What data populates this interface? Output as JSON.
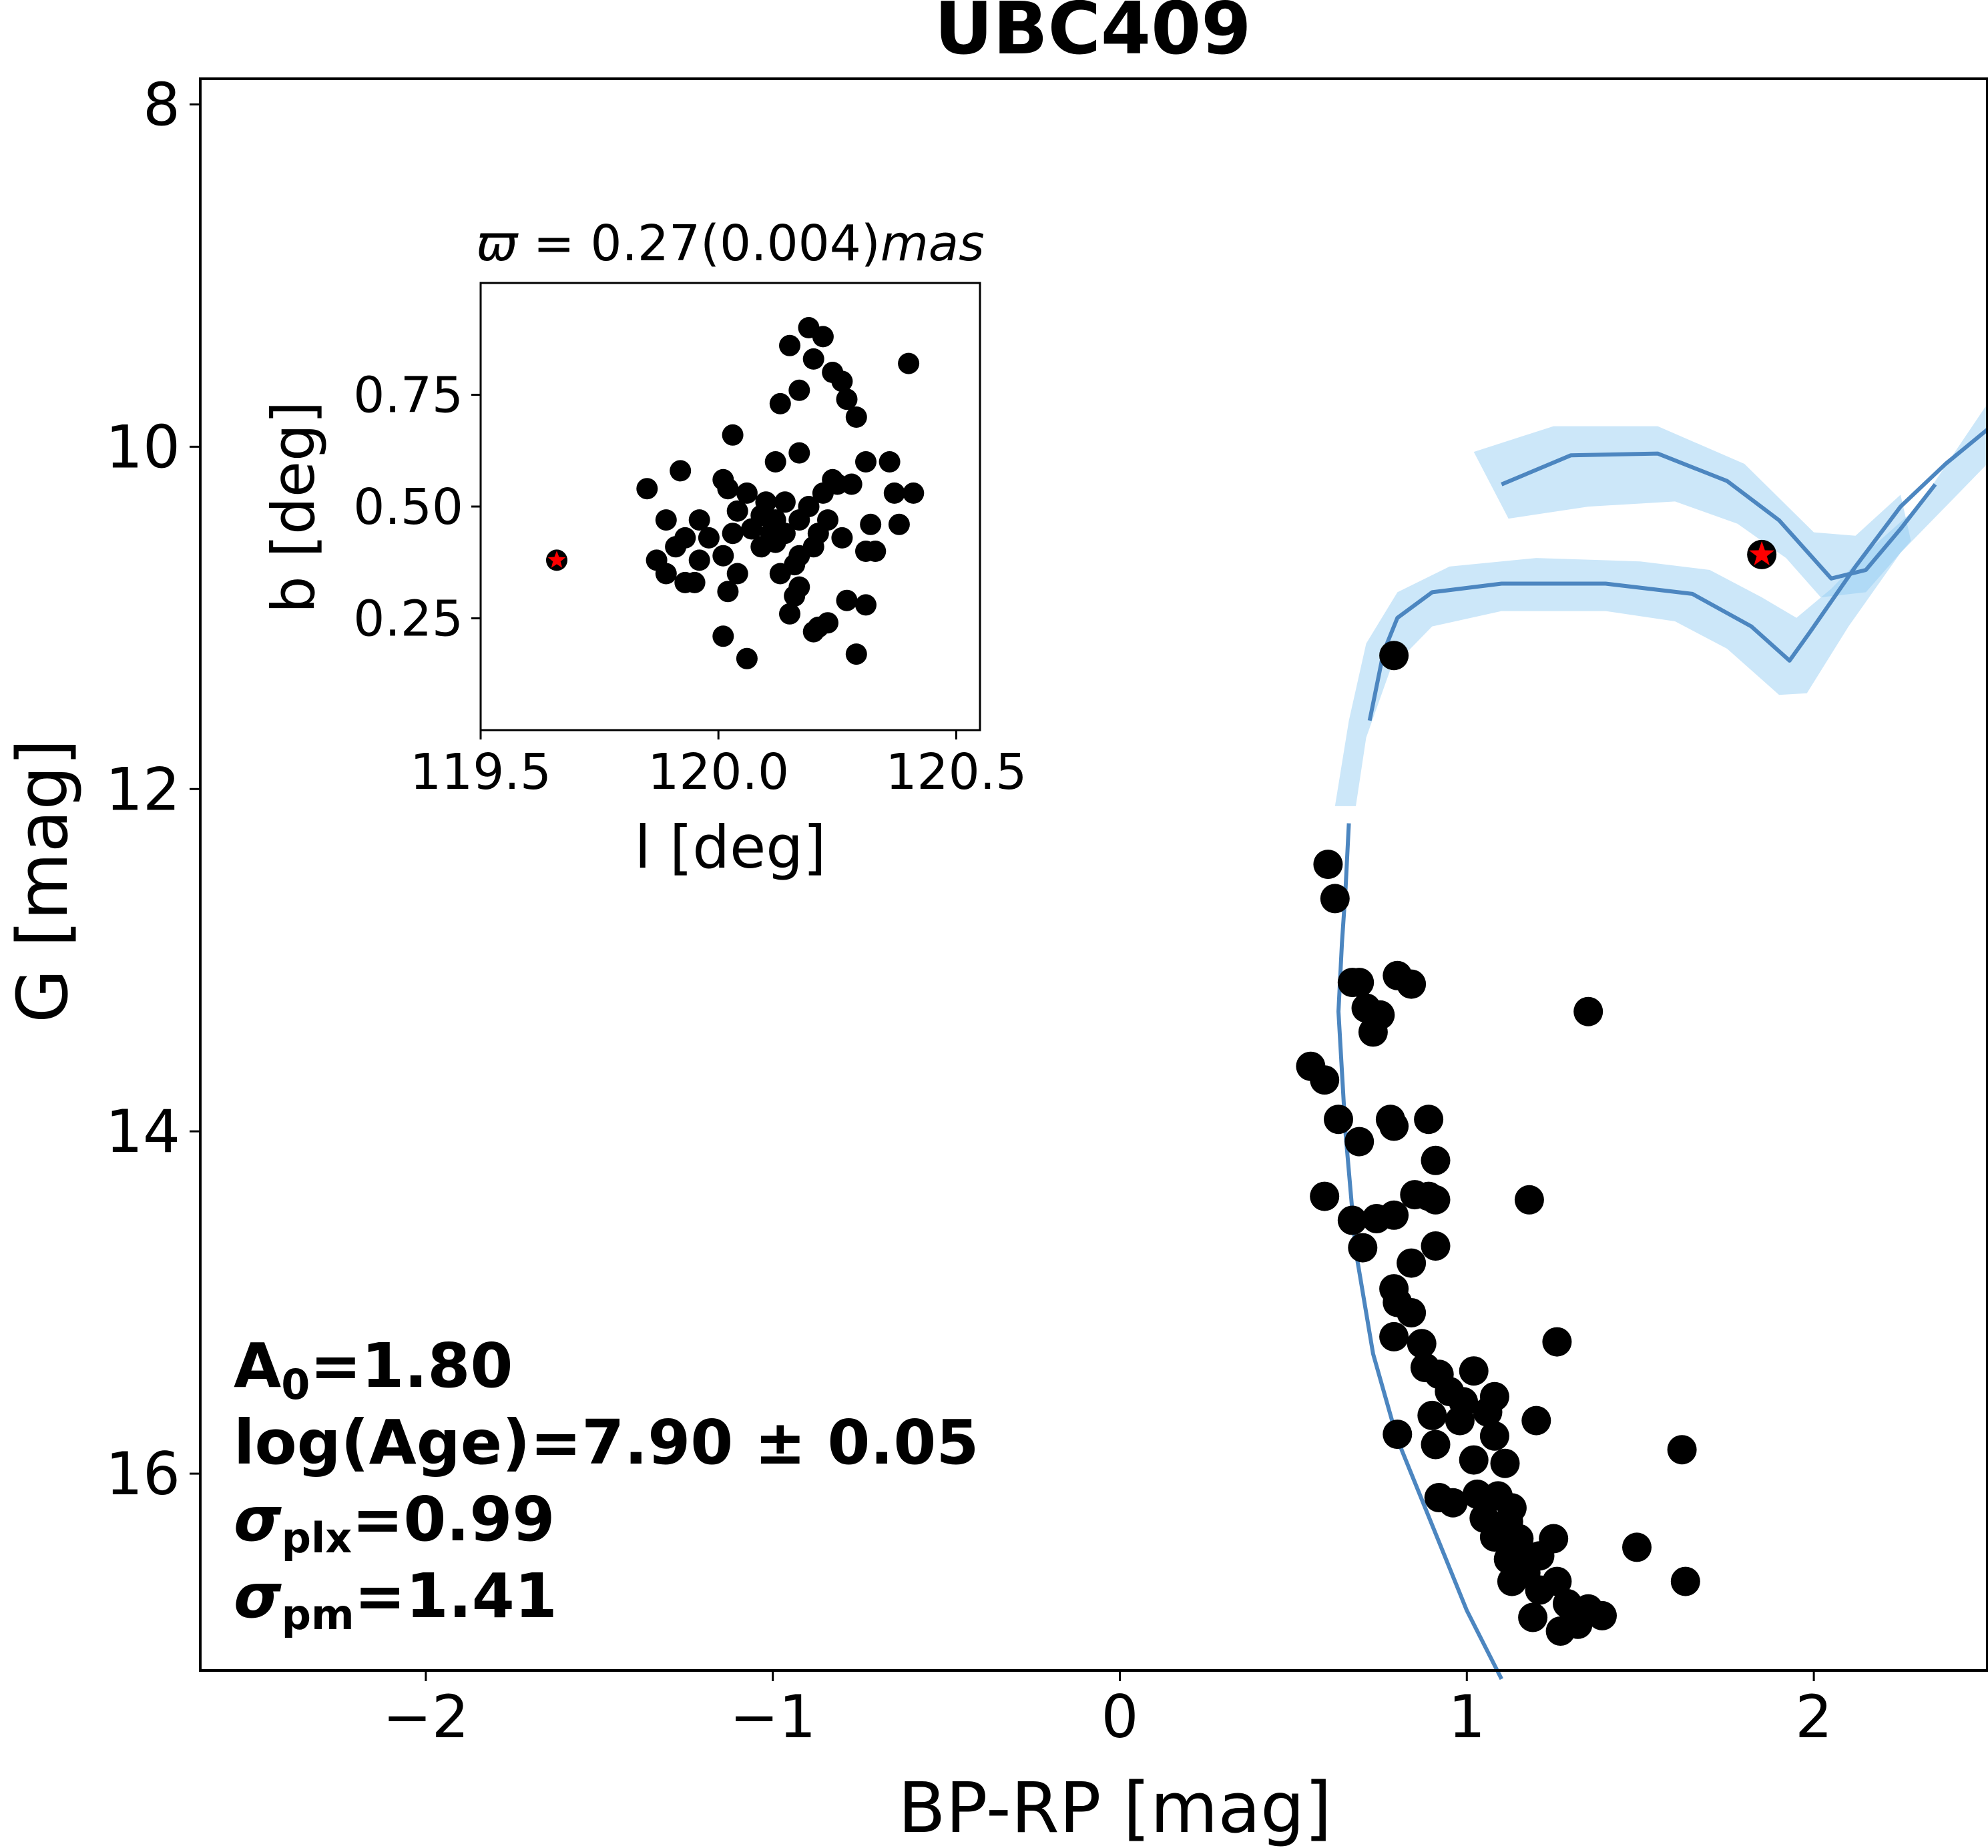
{
  "chart_data": [
    {
      "type": "scatter",
      "title": "UBC409",
      "xlabel": "BP-RP [mag]",
      "ylabel": "G [mag]",
      "xlim": [
        -2.65,
        2.5
      ],
      "ylim": [
        17.15,
        7.85
      ],
      "y_inverted": true,
      "xticks": [
        -2,
        -1,
        0,
        1,
        2
      ],
      "xtick_labels": [
        "−2",
        "−1",
        "0",
        "1",
        "2"
      ],
      "yticks": [
        8,
        10,
        12,
        14,
        16
      ],
      "ytick_labels": [
        "8",
        "10",
        "12",
        "14",
        "16"
      ],
      "annotations": {
        "a0": {
          "label": "A",
          "sub": "0",
          "value": "=1.80"
        },
        "age": {
          "text": "log(Age)=7.90 ± 0.05"
        },
        "splx": {
          "label": "σ",
          "sub": "plx",
          "value": "=0.99"
        },
        "spm": {
          "label": "σ",
          "sub": "pm",
          "value": "=1.41"
        }
      },
      "series": [
        {
          "name": "members",
          "marker": "circle",
          "color": "#000000",
          "points": [
            [
              0.79,
              11.22
            ],
            [
              0.6,
              12.44
            ],
            [
              0.62,
              12.64
            ],
            [
              0.67,
              13.13
            ],
            [
              0.69,
              13.13
            ],
            [
              0.8,
              13.09
            ],
            [
              0.84,
              13.14
            ],
            [
              0.71,
              13.28
            ],
            [
              0.75,
              13.32
            ],
            [
              0.73,
              13.42
            ],
            [
              1.35,
              13.3
            ],
            [
              0.55,
              13.62
            ],
            [
              0.59,
              13.7
            ],
            [
              0.63,
              13.93
            ],
            [
              0.78,
              13.93
            ],
            [
              0.79,
              13.97
            ],
            [
              0.89,
              13.93
            ],
            [
              0.69,
              14.06
            ],
            [
              0.91,
              14.17
            ],
            [
              0.59,
              14.38
            ],
            [
              0.85,
              14.37
            ],
            [
              0.89,
              14.38
            ],
            [
              0.91,
              14.4
            ],
            [
              1.18,
              14.4
            ],
            [
              0.67,
              14.52
            ],
            [
              0.74,
              14.51
            ],
            [
              0.79,
              14.49
            ],
            [
              0.7,
              14.68
            ],
            [
              0.91,
              14.67
            ],
            [
              0.84,
              14.77
            ],
            [
              0.79,
              14.92
            ],
            [
              0.8,
              15.0
            ],
            [
              0.84,
              15.06
            ],
            [
              0.79,
              15.2
            ],
            [
              0.87,
              15.24
            ],
            [
              1.26,
              15.23
            ],
            [
              0.88,
              15.38
            ],
            [
              0.92,
              15.42
            ],
            [
              1.02,
              15.4
            ],
            [
              0.95,
              15.52
            ],
            [
              0.99,
              15.58
            ],
            [
              1.08,
              15.55
            ],
            [
              0.9,
              15.66
            ],
            [
              0.98,
              15.69
            ],
            [
              1.06,
              15.64
            ],
            [
              1.2,
              15.69
            ],
            [
              0.8,
              15.77
            ],
            [
              1.08,
              15.78
            ],
            [
              0.91,
              15.83
            ],
            [
              1.02,
              15.92
            ],
            [
              1.11,
              15.94
            ],
            [
              1.62,
              15.86
            ],
            [
              0.92,
              16.14
            ],
            [
              0.96,
              16.17
            ],
            [
              1.03,
              16.12
            ],
            [
              1.09,
              16.13
            ],
            [
              1.13,
              16.2
            ],
            [
              1.05,
              16.26
            ],
            [
              1.12,
              16.28
            ],
            [
              1.08,
              16.37
            ],
            [
              1.15,
              16.38
            ],
            [
              1.25,
              16.38
            ],
            [
              1.49,
              16.43
            ],
            [
              1.12,
              16.5
            ],
            [
              1.17,
              16.52
            ],
            [
              1.21,
              16.48
            ],
            [
              1.13,
              16.63
            ],
            [
              1.17,
              16.58
            ],
            [
              1.26,
              16.63
            ],
            [
              1.21,
              16.68
            ],
            [
              1.63,
              16.63
            ],
            [
              1.29,
              16.76
            ],
            [
              1.35,
              16.79
            ],
            [
              1.39,
              16.83
            ],
            [
              1.19,
              16.84
            ],
            [
              1.27,
              16.92
            ],
            [
              1.32,
              16.88
            ]
          ]
        },
        {
          "name": "highlighted star",
          "marker": "red-star",
          "color": "#ff0000",
          "points": [
            [
              1.85,
              10.63
            ]
          ]
        }
      ],
      "isochrones": [
        {
          "name": "isochrone 1",
          "color": "#4c86c0",
          "points": [
            [
              1.1,
              17.2
            ],
            [
              1.0,
              16.8
            ],
            [
              0.9,
              16.3
            ],
            [
              0.8,
              15.8
            ],
            [
              0.73,
              15.3
            ],
            [
              0.68,
              14.7
            ],
            [
              0.65,
              14.0
            ],
            [
              0.63,
              13.3
            ],
            [
              0.64,
              12.9
            ],
            [
              0.65,
              12.6
            ],
            [
              0.66,
              12.2
            ]
          ]
        },
        {
          "name": "isochrone 2",
          "color": "#4c86c0",
          "points": [
            [
              0.72,
              11.6
            ],
            [
              0.76,
              11.2
            ],
            [
              0.8,
              11.0
            ],
            [
              0.9,
              10.85
            ],
            [
              1.1,
              10.8
            ],
            [
              1.4,
              10.8
            ],
            [
              1.65,
              10.86
            ],
            [
              1.82,
              11.05
            ],
            [
              1.93,
              11.25
            ],
            [
              1.99,
              11.08
            ],
            [
              2.12,
              10.7
            ],
            [
              2.25,
              10.35
            ],
            [
              2.38,
              10.1
            ],
            [
              2.5,
              9.9
            ]
          ]
        },
        {
          "name": "isochrone 3",
          "color": "#4c86c0",
          "points": [
            [
              1.1,
              10.22
            ],
            [
              1.3,
              10.05
            ],
            [
              1.55,
              10.04
            ],
            [
              1.75,
              10.2
            ],
            [
              1.9,
              10.43
            ],
            [
              2.05,
              10.77
            ],
            [
              2.15,
              10.72
            ],
            [
              2.25,
              10.48
            ],
            [
              2.35,
              10.22
            ]
          ]
        }
      ],
      "bands": [
        {
          "name": "uncertainty band 1",
          "color": "#8ec9f2",
          "upper": [
            [
              0.62,
              12.1
            ],
            [
              0.66,
              11.6
            ],
            [
              0.71,
              11.15
            ],
            [
              0.8,
              10.85
            ],
            [
              0.95,
              10.7
            ],
            [
              1.2,
              10.65
            ],
            [
              1.5,
              10.67
            ],
            [
              1.7,
              10.72
            ],
            [
              1.85,
              10.88
            ],
            [
              1.95,
              11.0
            ],
            [
              2.05,
              10.83
            ],
            [
              2.15,
              10.62
            ],
            [
              2.3,
              10.35
            ],
            [
              2.5,
              9.75
            ]
          ],
          "lower": [
            [
              0.68,
              12.1
            ],
            [
              0.71,
              11.7
            ],
            [
              0.78,
              11.3
            ],
            [
              0.9,
              11.05
            ],
            [
              1.1,
              10.96
            ],
            [
              1.4,
              10.96
            ],
            [
              1.6,
              11.02
            ],
            [
              1.75,
              11.18
            ],
            [
              1.9,
              11.45
            ],
            [
              1.98,
              11.44
            ],
            [
              2.1,
              11.05
            ],
            [
              2.25,
              10.62
            ],
            [
              2.5,
              10.1
            ]
          ]
        },
        {
          "name": "uncertainty band 2",
          "color": "#8ec9f2",
          "upper": [
            [
              1.02,
              10.03
            ],
            [
              1.25,
              9.88
            ],
            [
              1.55,
              9.88
            ],
            [
              1.8,
              10.1
            ],
            [
              2.0,
              10.5
            ],
            [
              2.12,
              10.52
            ],
            [
              2.25,
              10.28
            ]
          ],
          "lower": [
            [
              1.12,
              10.42
            ],
            [
              1.35,
              10.35
            ],
            [
              1.6,
              10.32
            ],
            [
              1.78,
              10.45
            ],
            [
              1.92,
              10.65
            ],
            [
              2.02,
              10.88
            ],
            [
              2.15,
              10.85
            ],
            [
              2.28,
              10.55
            ]
          ]
        }
      ]
    },
    {
      "type": "scatter",
      "name": "inset",
      "title": "ϖ = 0.27(0.004)mas",
      "title_math": {
        "varpi": "ϖ",
        "mid": " = 0.27(0.004)",
        "italic": "mas"
      },
      "xlabel": "l [deg]",
      "ylabel": "b [deg]",
      "xlim": [
        119.5,
        120.55
      ],
      "ylim": [
        0.0,
        1.0
      ],
      "xticks": [
        119.5,
        120.0,
        120.5
      ],
      "xtick_labels": [
        "119.5",
        "120.0",
        "120.5"
      ],
      "yticks": [
        0.25,
        0.5,
        0.75
      ],
      "ytick_labels": [
        "0.25",
        "0.50",
        "0.75"
      ],
      "series": [
        {
          "name": "members",
          "marker": "circle",
          "color": "#000000",
          "points": [
            [
              120.19,
              0.9
            ],
            [
              120.22,
              0.88
            ],
            [
              120.15,
              0.86
            ],
            [
              120.2,
              0.83
            ],
            [
              120.4,
              0.82
            ],
            [
              120.24,
              0.8
            ],
            [
              120.26,
              0.78
            ],
            [
              120.13,
              0.73
            ],
            [
              120.17,
              0.76
            ],
            [
              120.27,
              0.74
            ],
            [
              120.29,
              0.7
            ],
            [
              120.03,
              0.66
            ],
            [
              120.31,
              0.6
            ],
            [
              120.12,
              0.6
            ],
            [
              120.17,
              0.62
            ],
            [
              120.36,
              0.6
            ],
            [
              119.92,
              0.58
            ],
            [
              120.01,
              0.56
            ],
            [
              120.24,
              0.56
            ],
            [
              120.28,
              0.55
            ],
            [
              119.85,
              0.54
            ],
            [
              120.02,
              0.54
            ],
            [
              120.06,
              0.53
            ],
            [
              120.1,
              0.51
            ],
            [
              120.14,
              0.51
            ],
            [
              120.22,
              0.53
            ],
            [
              120.25,
              0.55
            ],
            [
              120.37,
              0.53
            ],
            [
              120.41,
              0.53
            ],
            [
              120.19,
              0.5
            ],
            [
              120.04,
              0.49
            ],
            [
              120.09,
              0.48
            ],
            [
              120.12,
              0.47
            ],
            [
              120.17,
              0.47
            ],
            [
              120.07,
              0.45
            ],
            [
              119.89,
              0.47
            ],
            [
              119.96,
              0.47
            ],
            [
              120.23,
              0.47
            ],
            [
              120.32,
              0.46
            ],
            [
              120.38,
              0.46
            ],
            [
              120.11,
              0.44
            ],
            [
              120.14,
              0.44
            ],
            [
              119.93,
              0.43
            ],
            [
              119.98,
              0.43
            ],
            [
              120.03,
              0.44
            ],
            [
              120.21,
              0.44
            ],
            [
              120.26,
              0.43
            ],
            [
              120.09,
              0.41
            ],
            [
              120.12,
              0.42
            ],
            [
              120.2,
              0.41
            ],
            [
              119.91,
              0.41
            ],
            [
              120.33,
              0.4
            ],
            [
              120.17,
              0.39
            ],
            [
              120.31,
              0.4
            ],
            [
              119.87,
              0.38
            ],
            [
              119.96,
              0.38
            ],
            [
              120.01,
              0.39
            ],
            [
              120.16,
              0.37
            ],
            [
              119.89,
              0.35
            ],
            [
              120.13,
              0.35
            ],
            [
              120.04,
              0.35
            ],
            [
              119.93,
              0.33
            ],
            [
              119.95,
              0.33
            ],
            [
              120.17,
              0.32
            ],
            [
              120.16,
              0.3
            ],
            [
              120.02,
              0.31
            ],
            [
              120.27,
              0.29
            ],
            [
              120.31,
              0.28
            ],
            [
              120.15,
              0.26
            ],
            [
              120.2,
              0.22
            ],
            [
              120.23,
              0.24
            ],
            [
              120.01,
              0.21
            ],
            [
              120.21,
              0.23
            ],
            [
              120.06,
              0.16
            ],
            [
              120.29,
              0.17
            ]
          ]
        },
        {
          "name": "highlighted star",
          "marker": "red-star",
          "color": "#ff0000",
          "points": [
            [
              119.66,
              0.38
            ]
          ]
        }
      ]
    }
  ]
}
